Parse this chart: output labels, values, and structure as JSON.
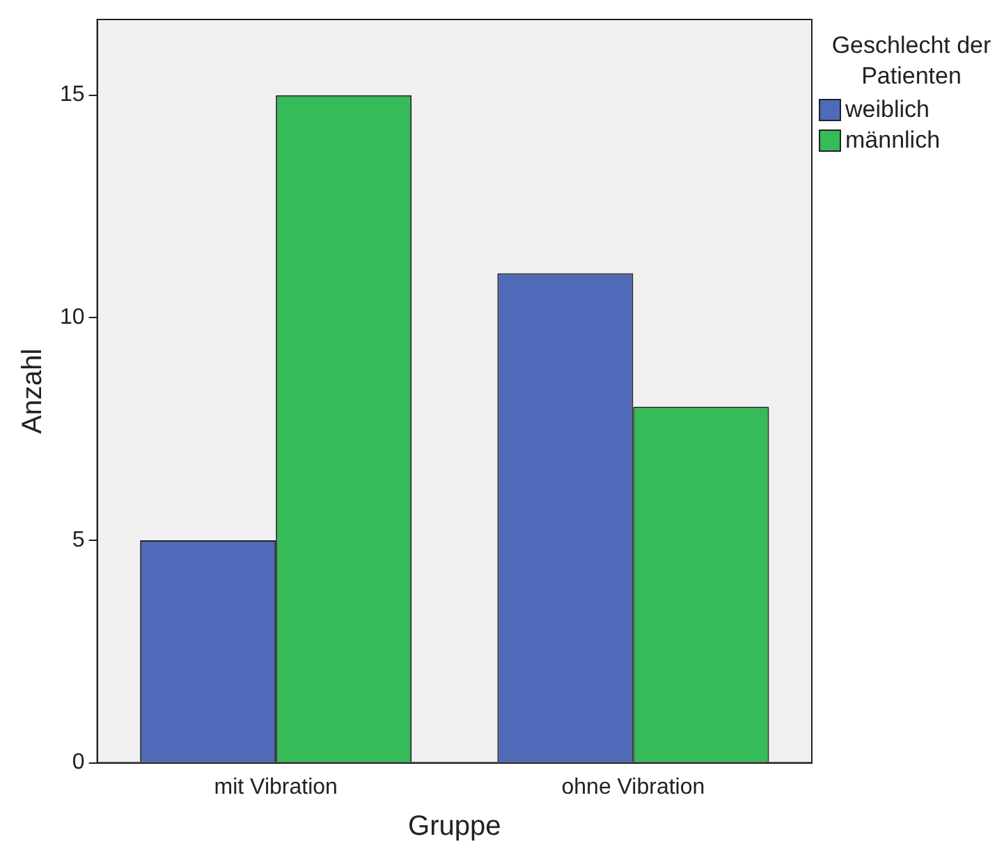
{
  "chart_data": {
    "type": "bar",
    "xlabel": "Gruppe",
    "ylabel": "Anzahl",
    "legend_title": "Geschlecht der Patienten",
    "legend": "top right",
    "grid": false,
    "categories": [
      "mit Vibration",
      "ohne Vibration"
    ],
    "series": [
      {
        "name": "weiblich",
        "color": "#4e6ab8",
        "values": [
          5,
          11
        ]
      },
      {
        "name": "männlich",
        "color": "#35bb57",
        "values": [
          15,
          8
        ]
      }
    ],
    "ylim": [
      0,
      16.7
    ],
    "yticks": [
      0,
      5,
      10,
      15
    ]
  }
}
